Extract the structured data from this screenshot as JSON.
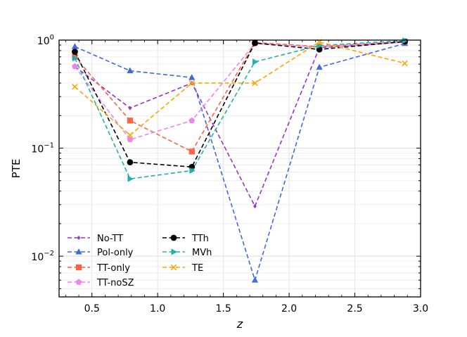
{
  "chart_data": {
    "type": "line",
    "title": "",
    "xlabel": "z",
    "ylabel": "PTE",
    "xlim": [
      0.25,
      3.0
    ],
    "ylim": [
      0.0042,
      1.0
    ],
    "yscale": "log",
    "grid": true,
    "legend_placement": "lower-left",
    "x_ticks": [
      0.5,
      1.0,
      1.5,
      2.0,
      2.5,
      3.0
    ],
    "x_tick_labels": [
      "0.5",
      "1.0",
      "1.5",
      "2.0",
      "2.5",
      "3.0"
    ],
    "y_ticks": [
      0.01,
      0.1,
      1.0
    ],
    "y_tick_labels": [
      {
        "base": "10",
        "exp": "−2"
      },
      {
        "base": "10",
        "exp": "−1"
      },
      {
        "base": "10",
        "exp": "0"
      }
    ],
    "x": [
      0.37,
      0.79,
      1.26,
      1.74,
      2.23,
      2.88
    ],
    "series": [
      {
        "name": "No-TT",
        "color": "#9932cc",
        "marker": "diamond",
        "values": [
          0.57,
          0.235,
          0.4,
          0.029,
          0.85,
          0.96
        ]
      },
      {
        "name": "Pol-only",
        "color": "#4169e1",
        "marker": "triangle-up",
        "values": [
          0.87,
          0.52,
          0.45,
          0.006,
          0.56,
          0.93
        ]
      },
      {
        "name": "TT-only",
        "color": "#ff6347",
        "marker": "square",
        "values": [
          0.7,
          0.18,
          0.093,
          0.95,
          0.87,
          0.97
        ]
      },
      {
        "name": "TT-noSZ",
        "color": "#ee82ee",
        "marker": "pentagon",
        "values": [
          0.57,
          0.12,
          0.18,
          0.93,
          0.86,
          0.96
        ]
      },
      {
        "name": "TTh",
        "color": "#000000",
        "marker": "circle",
        "values": [
          0.78,
          0.074,
          0.067,
          0.94,
          0.82,
          0.97
        ]
      },
      {
        "name": "MVh",
        "color": "#20b2aa",
        "marker": "triangle-right",
        "values": [
          0.68,
          0.052,
          0.062,
          0.63,
          0.89,
          0.99
        ]
      },
      {
        "name": "TE",
        "color": "#ffa500",
        "marker": "x",
        "values": [
          0.37,
          0.132,
          0.4,
          0.4,
          0.96,
          0.61
        ]
      }
    ]
  }
}
